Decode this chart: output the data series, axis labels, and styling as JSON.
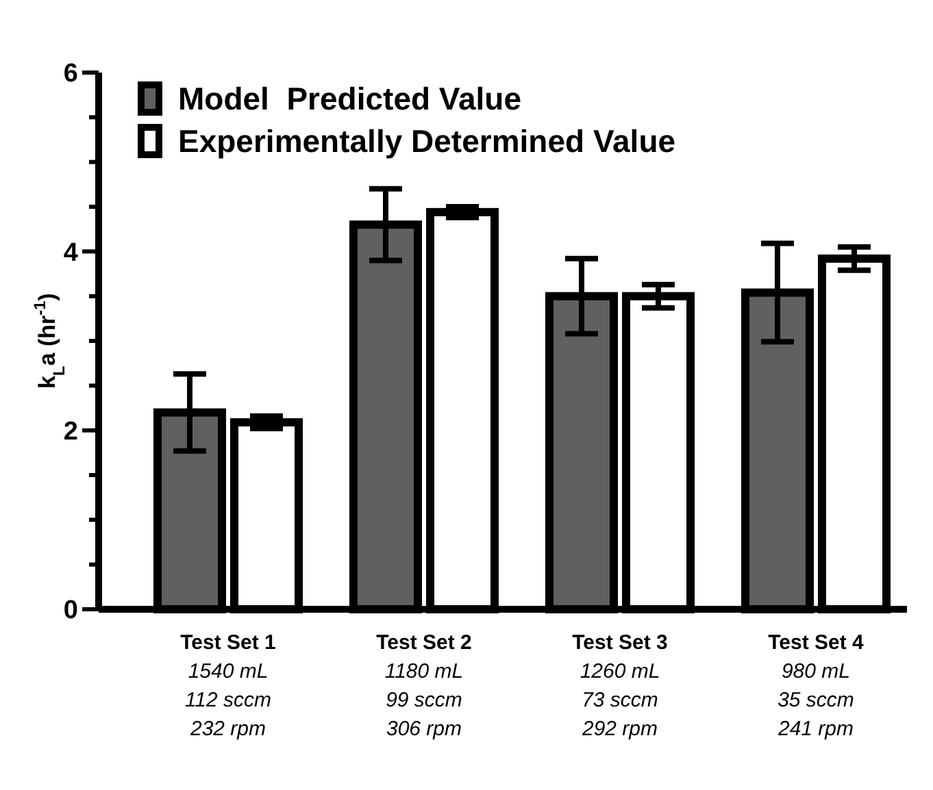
{
  "chart_data": {
    "type": "bar",
    "ylabel": "k$_{L}$a (hr$^{-1}$)",
    "categories": [
      "Test Set 1\n1540 mL\n112 sccm\n232 rpm",
      "Test Set 2\n1180 mL\n99 sccm\n306 rpm",
      "Test Set 3\n1260 mL\n73 sccm\n292 rpm",
      "Test Set 4\n980 mL\n35 sccm\n241 rpm"
    ],
    "series": [
      {
        "name": "Model  Predicted Value",
        "color": "#5f605f",
        "values": [
          2.2,
          4.3,
          3.5,
          3.54
        ],
        "errors": [
          0.43,
          0.4,
          0.42,
          0.55
        ]
      },
      {
        "name": "Experimentally Determined Value",
        "color": "#ffffff",
        "values": [
          2.09,
          4.44,
          3.5,
          3.92
        ],
        "errors": [
          0.07,
          0.06,
          0.13,
          0.13
        ]
      }
    ],
    "ylim": [
      0,
      6
    ],
    "yticks": [
      0,
      {
        "value": 0.5,
        "label": null
      },
      {
        "value": 1,
        "label": null
      },
      {
        "value": 1.5,
        "label": null
      },
      2,
      {
        "value": 2.5,
        "label": null
      },
      {
        "value": 3,
        "label": null
      },
      {
        "value": 3.5,
        "label": null
      },
      4,
      {
        "value": 4.5,
        "label": null
      },
      {
        "value": 5,
        "label": null
      },
      {
        "value": 5.5,
        "label": null
      },
      6
    ],
    "grid": false,
    "legend": "top left"
  }
}
